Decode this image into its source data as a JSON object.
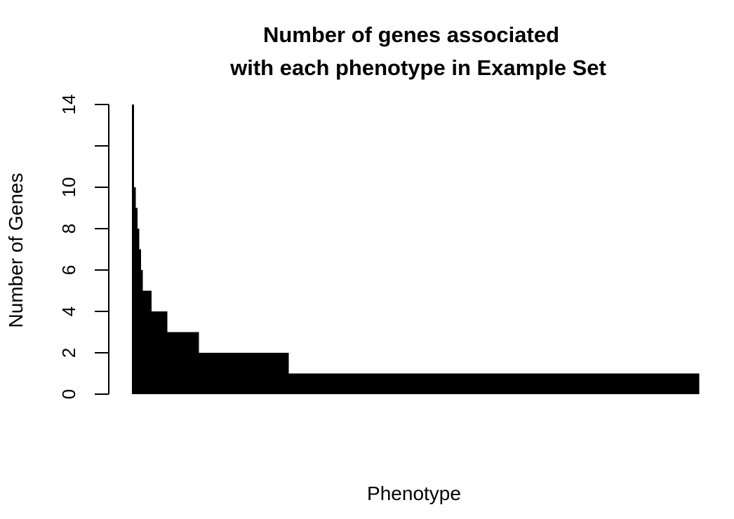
{
  "chart_data": {
    "type": "bar",
    "title_lines": [
      "Number of genes associated",
      "with each phenotype in Example Set"
    ],
    "xlabel": "Phenotype",
    "ylabel": "Number of Genes",
    "ylim": [
      0,
      14
    ],
    "yticks": [
      0,
      2,
      4,
      6,
      8,
      10,
      12,
      14
    ],
    "ytick_labels": [
      "0",
      "2",
      "4",
      "6",
      "8",
      "10",
      "",
      "14"
    ],
    "bar_color": "#000000",
    "grid": false,
    "legend": "none",
    "sorted": "descending",
    "groups": [
      {
        "value": 14,
        "count": 1
      },
      {
        "value": 10,
        "count": 1
      },
      {
        "value": 9,
        "count": 1
      },
      {
        "value": 8,
        "count": 1
      },
      {
        "value": 7,
        "count": 1
      },
      {
        "value": 6,
        "count": 1
      },
      {
        "value": 5,
        "count": 5
      },
      {
        "value": 4,
        "count": 9
      },
      {
        "value": 3,
        "count": 18
      },
      {
        "value": 2,
        "count": 51
      },
      {
        "value": 1,
        "count": 233
      }
    ]
  }
}
